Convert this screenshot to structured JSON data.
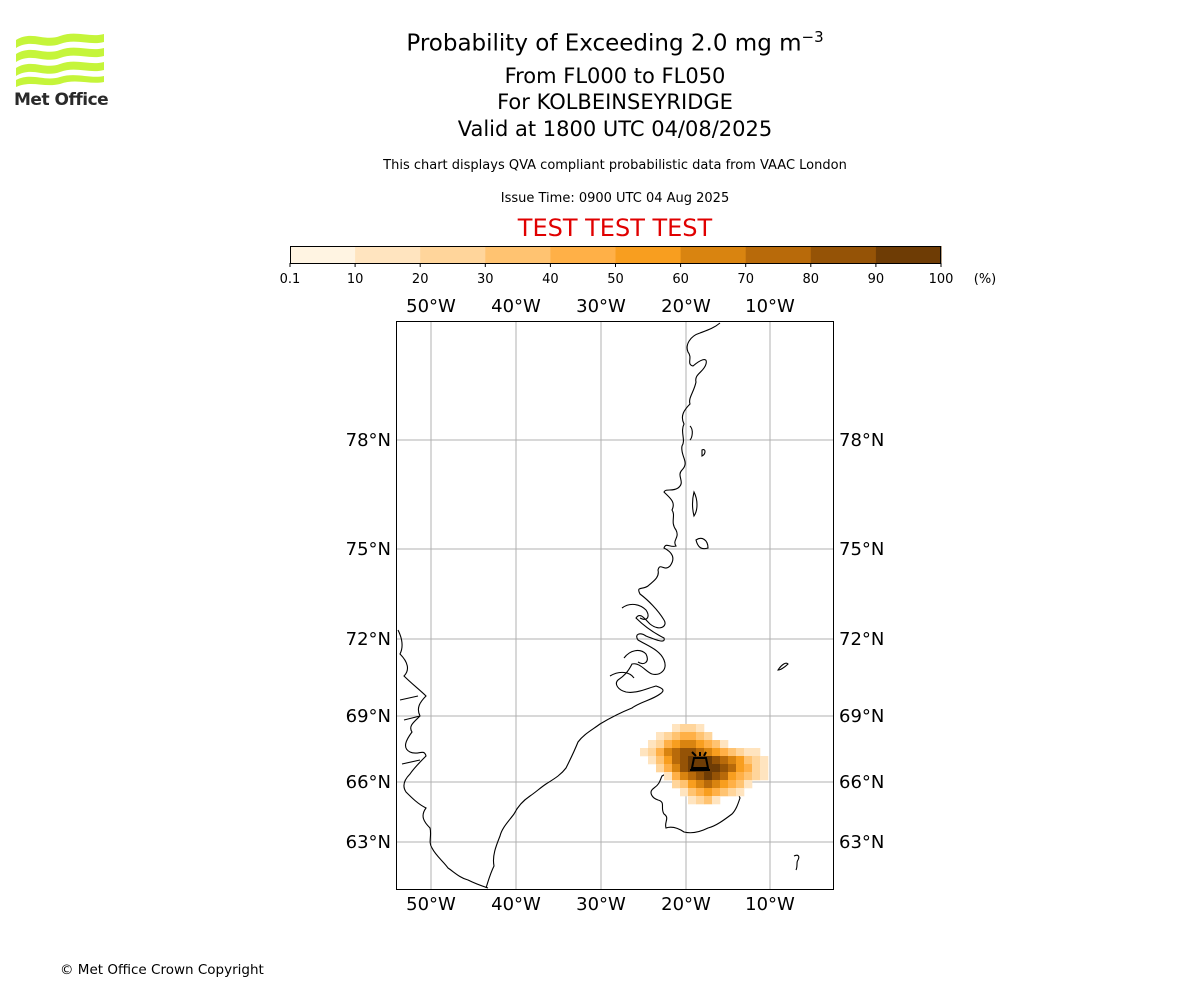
{
  "logo": {
    "name": "Met Office"
  },
  "title": {
    "line1_main": "Probability of Exceeding 2.0 mg m",
    "line1_sup": "−3",
    "line2": "From FL000 to FL050",
    "line3": "For KOLBEINSEYRIDGE",
    "line4": "Valid at 1800 UTC 04/08/2025"
  },
  "note": "This chart displays QVA compliant probabilistic data from VAAC London",
  "issue_time": "Issue Time: 0900 UTC 04 Aug 2025",
  "test_banner": "TEST TEST TEST",
  "colorbar": {
    "tick_labels": [
      "0.1",
      "10",
      "20",
      "30",
      "40",
      "50",
      "60",
      "70",
      "80",
      "90",
      "100"
    ],
    "unit": "(%)",
    "colors": [
      "#fff4e2",
      "#ffe4bf",
      "#ffd59b",
      "#ffc371",
      "#ffb047",
      "#f89e1f",
      "#d98410",
      "#b86a0a",
      "#955306",
      "#6e3c05"
    ]
  },
  "map": {
    "lon_labels": [
      "50°W",
      "40°W",
      "30°W",
      "20°W",
      "10°W"
    ],
    "lat_labels": [
      "78°N",
      "75°N",
      "72°N",
      "69°N",
      "66°N",
      "63°N"
    ],
    "coast_color": "#000000",
    "grid_color": "#b0b0b0",
    "volcano_marker": "volcano-icon",
    "plume": {
      "description_levels_percent": [
        10,
        30,
        50,
        70,
        90
      ],
      "peak_probability_percent": 90
    }
  },
  "footer": "© Met Office Crown Copyright"
}
